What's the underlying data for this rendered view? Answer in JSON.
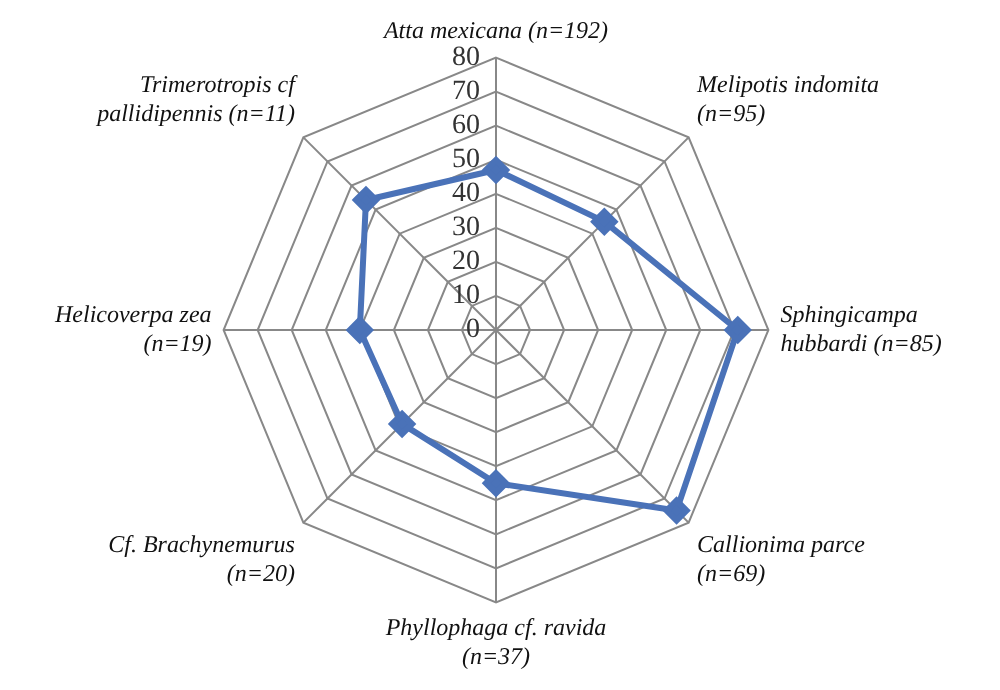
{
  "chart_data": {
    "type": "radar",
    "categories": [
      "Atta mexicana (n=192)",
      "Melipotis indomita\n(n=95)",
      "Sphingicampa\nhubbardi (n=85)",
      "Callionima parce\n(n=69)",
      "Phyllophaga cf. ravida\n(n=37)",
      "Cf. Brachynemurus\n(n=20)",
      "Helicoverpa zea\n(n=19)",
      "Trimerotropis cf\npallidipennis (n=11)"
    ],
    "series": [
      {
        "color": "#4a72b8",
        "values": [
          47,
          45,
          71,
          75,
          45,
          39,
          40,
          54
        ]
      }
    ],
    "ylim": [
      0,
      80
    ],
    "yticks": [
      0,
      10,
      20,
      30,
      40,
      50,
      60,
      70,
      80
    ],
    "grid": true,
    "legend": false,
    "marker": "diamond",
    "line_style": "solid"
  }
}
